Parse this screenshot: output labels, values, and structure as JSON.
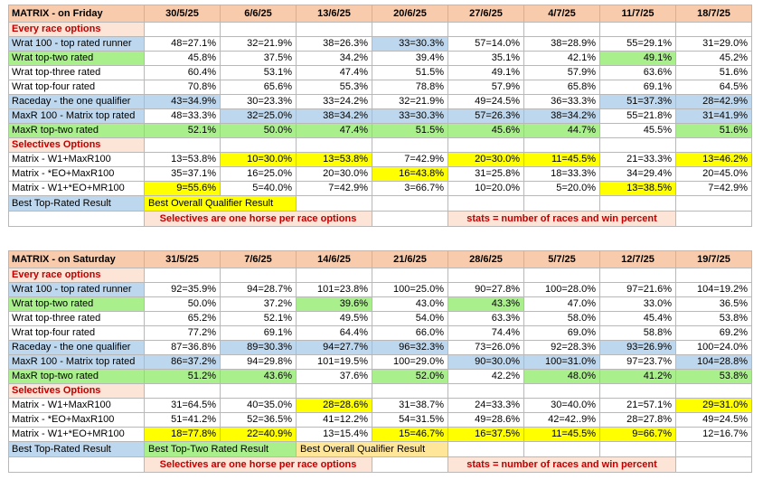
{
  "tables": [
    {
      "title": "MATRIX - on Friday",
      "dates": [
        "30/5/25",
        "6/6/25",
        "13/6/25",
        "20/6/25",
        "27/6/25",
        "4/7/25",
        "11/7/25",
        "18/7/25"
      ],
      "rows": [
        {
          "type": "section",
          "label": "Every race options",
          "lbl_cls": "pk",
          "cells": [],
          "cls": []
        },
        {
          "type": "data",
          "label": "Wrat 100 - top rated runner",
          "lbl_cls": "bl",
          "cells": [
            "48=27.1%",
            "32=21.9%",
            "38=26.3%",
            "33=30.3%",
            "57=14.0%",
            "38=28.9%",
            "55=29.1%",
            "31=29.0%"
          ],
          "cls": [
            "",
            "",
            "",
            "bl",
            "",
            "",
            "",
            ""
          ]
        },
        {
          "type": "data",
          "label": "Wrat top-two rated",
          "lbl_cls": "gr",
          "cells": [
            "45.8%",
            "37.5%",
            "34.2%",
            "39.4%",
            "35.1%",
            "42.1%",
            "49.1%",
            "45.2%"
          ],
          "cls": [
            "",
            "",
            "",
            "",
            "",
            "",
            "gr",
            ""
          ]
        },
        {
          "type": "data",
          "label": "Wrat top-three rated",
          "lbl_cls": "",
          "cells": [
            "60.4%",
            "53.1%",
            "47.4%",
            "51.5%",
            "49.1%",
            "57.9%",
            "63.6%",
            "51.6%"
          ],
          "cls": [
            "",
            "",
            "",
            "",
            "",
            "",
            "",
            ""
          ]
        },
        {
          "type": "data",
          "label": "Wrat top-four rated",
          "lbl_cls": "",
          "cells": [
            "70.8%",
            "65.6%",
            "55.3%",
            "78.8%",
            "57.9%",
            "65.8%",
            "69.1%",
            "64.5%"
          ],
          "cls": [
            "",
            "",
            "",
            "",
            "",
            "",
            "",
            ""
          ]
        },
        {
          "type": "data",
          "label": "Raceday - the one qualifier",
          "lbl_cls": "bl",
          "cells": [
            "43=34.9%",
            "30=23.3%",
            "33=24.2%",
            "32=21.9%",
            "49=24.5%",
            "36=33.3%",
            "51=37.3%",
            "28=42.9%"
          ],
          "cls": [
            "bl",
            "",
            "",
            "",
            "",
            "",
            "bl",
            "bl"
          ]
        },
        {
          "type": "data",
          "label": "MaxR 100 - Matrix top rated",
          "lbl_cls": "bl",
          "cells": [
            "48=33.3%",
            "32=25.0%",
            "38=34.2%",
            "33=30.3%",
            "57=26.3%",
            "38=34.2%",
            "55=21.8%",
            "31=41.9%"
          ],
          "cls": [
            "",
            "bl",
            "bl",
            "bl",
            "bl",
            "bl",
            "",
            "bl"
          ]
        },
        {
          "type": "data",
          "label": "MaxR top-two rated",
          "lbl_cls": "gr",
          "cells": [
            "52.1%",
            "50.0%",
            "47.4%",
            "51.5%",
            "45.6%",
            "44.7%",
            "45.5%",
            "51.6%"
          ],
          "cls": [
            "gr",
            "gr",
            "gr",
            "gr",
            "gr",
            "gr",
            "",
            "gr"
          ]
        },
        {
          "type": "section",
          "label": "Selectives Options",
          "lbl_cls": "pk",
          "cells": [],
          "cls": []
        },
        {
          "type": "data",
          "label": "Matrix - W1+MaxR100",
          "lbl_cls": "",
          "cells": [
            "13=53.8%",
            "10=30.0%",
            "13=53.8%",
            "7=42.9%",
            "20=30.0%",
            "11=45.5%",
            "21=33.3%",
            "13=46.2%"
          ],
          "cls": [
            "",
            "ye",
            "ye",
            "",
            "ye",
            "ye",
            "",
            "ye"
          ]
        },
        {
          "type": "data",
          "label": "Matrix - *EO+MaxR100",
          "lbl_cls": "",
          "cells": [
            "35=37.1%",
            "16=25.0%",
            "20=30.0%",
            "16=43.8%",
            "31=25.8%",
            "18=33.3%",
            "34=29.4%",
            "20=45.0%"
          ],
          "cls": [
            "",
            "",
            "",
            "ye",
            "",
            "",
            "",
            ""
          ]
        },
        {
          "type": "data",
          "label": "Matrix - W1+*EO+MR100",
          "lbl_cls": "",
          "cells": [
            "9=55.6%",
            "5=40.0%",
            "7=42.9%",
            "3=66.7%",
            "10=20.0%",
            "5=20.0%",
            "13=38.5%",
            "7=42.9%"
          ],
          "cls": [
            "ye",
            "",
            "",
            "",
            "",
            "",
            "ye",
            ""
          ]
        }
      ],
      "legend": {
        "best_top_rated": "Best Top-Rated Result",
        "best_second": "Best Overall Qualifier Result",
        "second_cls": "ye"
      },
      "notes": {
        "selectives": "Selectives are one horse per race options",
        "stats": "stats = number of races and win percent"
      }
    },
    {
      "title": "MATRIX - on Saturday",
      "dates": [
        "31/5/25",
        "7/6/25",
        "14/6/25",
        "21/6/25",
        "28/6/25",
        "5/7/25",
        "12/7/25",
        "19/7/25"
      ],
      "rows": [
        {
          "type": "section",
          "label": "Every race options",
          "lbl_cls": "pk",
          "cells": [],
          "cls": []
        },
        {
          "type": "data",
          "label": "Wrat 100 - top rated runner",
          "lbl_cls": "bl",
          "cells": [
            "92=35.9%",
            "94=28.7%",
            "101=23.8%",
            "100=25.0%",
            "90=27.8%",
            "100=28.0%",
            "97=21.6%",
            "104=19.2%"
          ],
          "cls": [
            "",
            "",
            "",
            "",
            "",
            "",
            "",
            ""
          ]
        },
        {
          "type": "data",
          "label": "Wrat top-two rated",
          "lbl_cls": "gr",
          "cells": [
            "50.0%",
            "37.2%",
            "39.6%",
            "43.0%",
            "43.3%",
            "47.0%",
            "33.0%",
            "36.5%"
          ],
          "cls": [
            "",
            "",
            "gr",
            "",
            "gr",
            "",
            "",
            ""
          ]
        },
        {
          "type": "data",
          "label": "Wrat top-three rated",
          "lbl_cls": "",
          "cells": [
            "65.2%",
            "52.1%",
            "49.5%",
            "54.0%",
            "63.3%",
            "58.0%",
            "45.4%",
            "53.8%"
          ],
          "cls": [
            "",
            "",
            "",
            "",
            "",
            "",
            "",
            ""
          ]
        },
        {
          "type": "data",
          "label": "Wrat top-four rated",
          "lbl_cls": "",
          "cells": [
            "77.2%",
            "69.1%",
            "64.4%",
            "66.0%",
            "74.4%",
            "69.0%",
            "58.8%",
            "69.2%"
          ],
          "cls": [
            "",
            "",
            "",
            "",
            "",
            "",
            "",
            ""
          ]
        },
        {
          "type": "data",
          "label": "Raceday - the one qualifier",
          "lbl_cls": "bl",
          "cells": [
            "87=36.8%",
            "89=30.3%",
            "94=27.7%",
            "96=32.3%",
            "73=26.0%",
            "92=28.3%",
            "93=26.9%",
            "100=24.0%"
          ],
          "cls": [
            "",
            "bl",
            "bl",
            "bl",
            "",
            "",
            "bl",
            ""
          ]
        },
        {
          "type": "data",
          "label": "MaxR 100 - Matrix top rated",
          "lbl_cls": "bl",
          "cells": [
            "86=37.2%",
            "94=29.8%",
            "101=19.5%",
            "100=29.0%",
            "90=30.0%",
            "100=31.0%",
            "97=23.7%",
            "104=28.8%"
          ],
          "cls": [
            "bl",
            "",
            "",
            "",
            "bl",
            "bl",
            "",
            "bl"
          ]
        },
        {
          "type": "data",
          "label": "MaxR top-two rated",
          "lbl_cls": "gr",
          "cells": [
            "51.2%",
            "43.6%",
            "37.6%",
            "52.0%",
            "42.2%",
            "48.0%",
            "41.2%",
            "53.8%"
          ],
          "cls": [
            "gr",
            "gr",
            "",
            "gr",
            "",
            "gr",
            "gr",
            "gr"
          ]
        },
        {
          "type": "section",
          "label": "Selectives Options",
          "lbl_cls": "pk",
          "cells": [],
          "cls": []
        },
        {
          "type": "data",
          "label": "Matrix - W1+MaxR100",
          "lbl_cls": "",
          "cells": [
            "31=64.5%",
            "40=35.0%",
            "28=28.6%",
            "31=38.7%",
            "24=33.3%",
            "30=40.0%",
            "21=57.1%",
            "29=31.0%"
          ],
          "cls": [
            "",
            "",
            "ye",
            "",
            "",
            "",
            "",
            "ye"
          ]
        },
        {
          "type": "data",
          "label": "Matrix - *EO+MaxR100",
          "lbl_cls": "",
          "cells": [
            "51=41.2%",
            "52=36.5%",
            "41=12.2%",
            "54=31.5%",
            "49=28.6%",
            "42=42..9%",
            "28=27.8%",
            "49=24.5%"
          ],
          "cls": [
            "",
            "",
            "",
            "",
            "",
            "",
            "",
            ""
          ]
        },
        {
          "type": "data",
          "label": "Matrix - W1+*EO+MR100",
          "lbl_cls": "",
          "cells": [
            "18=77.8%",
            "22=40.9%",
            "13=15.4%",
            "15=46.7%",
            "16=37.5%",
            "11=45.5%",
            "9=66.7%",
            "12=16.7%"
          ],
          "cls": [
            "ye",
            "ye",
            "",
            "ye",
            "ye",
            "ye",
            "ye",
            ""
          ]
        }
      ],
      "legend": {
        "best_top_rated": "Best Top-Rated Result",
        "best_second": "Best Top-Two Rated Result",
        "best_third": "Best Overall Qualifier Result",
        "second_cls": "gr"
      },
      "notes": {
        "selectives": "Selectives are one horse per race options",
        "stats": "stats = number of races and win percent"
      }
    }
  ]
}
